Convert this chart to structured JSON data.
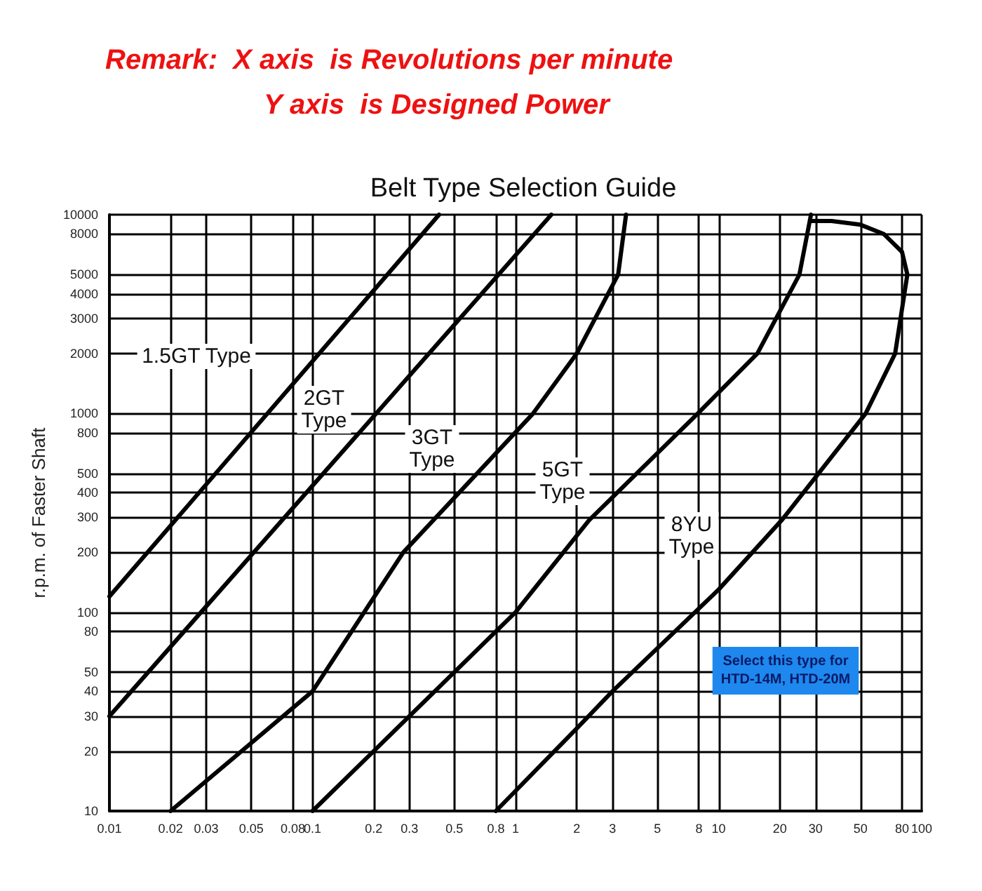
{
  "chart_data": {
    "type": "line",
    "title": "Belt Type Selection Guide",
    "ylabel": "r.p.m. of Faster Shaft",
    "annotations": [
      "Remark:  X axis  is Revolutions per minute",
      "Y axis  is Designed Power",
      "1.5GT Type",
      "2GT\nType",
      "3GT\nType",
      "5GT\nType",
      "8YU\nType",
      "Select this type for\nHTD-14M, HTD-20M"
    ],
    "series": [
      {
        "color": "#000000",
        "x": [
          0.01,
          0.42
        ],
        "values": [
          120,
          10000
        ]
      },
      {
        "color": "#000000",
        "x": [
          0.01,
          1.5
        ],
        "values": [
          30,
          10000
        ]
      },
      {
        "color": "#000000",
        "x": [
          0.02,
          0.1,
          0.28,
          1.22,
          2,
          3.2,
          3.5
        ],
        "values": [
          10,
          40,
          200,
          1000,
          2000,
          5000,
          10000
        ]
      },
      {
        "color": "#000000",
        "x": [
          0.1,
          1,
          2.3,
          7.9,
          15.5,
          25,
          28.5
        ],
        "values": [
          10,
          100,
          290,
          1000,
          2000,
          5000,
          10000
        ]
      },
      {
        "color": "#000000",
        "x": [
          0.8,
          2,
          3,
          10,
          20.6,
          53,
          74,
          85,
          80,
          65,
          50,
          36,
          28.5
        ],
        "values": [
          10,
          26,
          40,
          130,
          293,
          1000,
          2000,
          5000,
          6500,
          8000,
          8900,
          9300,
          9300
        ]
      }
    ],
    "xlim": [
      0.01,
      100
    ],
    "ylim": [
      10,
      10000
    ],
    "xticks": [
      0.01,
      0.02,
      0.03,
      0.05,
      0.08,
      0.1,
      0.2,
      0.3,
      0.5,
      0.8,
      1,
      2,
      3,
      5,
      8,
      10,
      20,
      30,
      50,
      80,
      100
    ],
    "yticks": [
      10,
      20,
      30,
      40,
      50,
      80,
      100,
      200,
      300,
      400,
      500,
      800,
      1000,
      2000,
      3000,
      4000,
      5000,
      8000,
      10000
    ],
    "log": "xy",
    "grid": true,
    "marker": "none",
    "line_style": "solid"
  }
}
